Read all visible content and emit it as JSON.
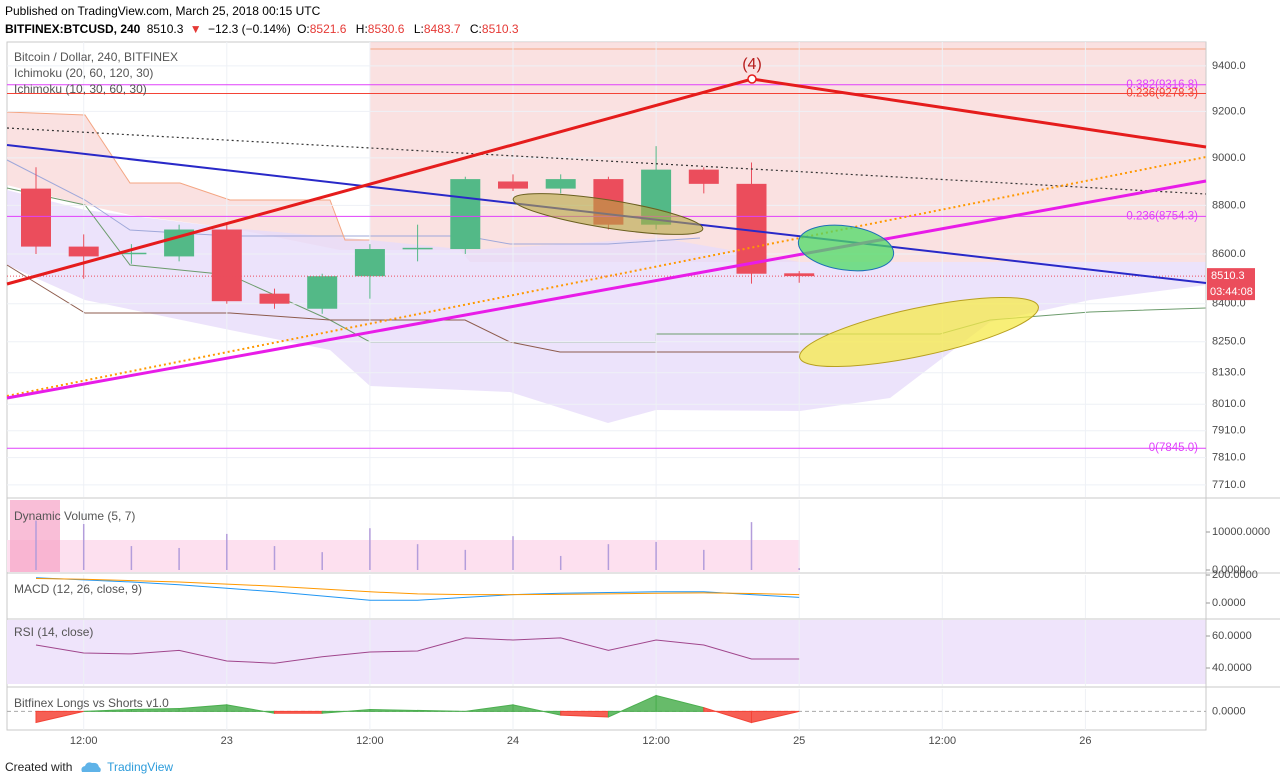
{
  "header": {
    "published": "Published on TradingView.com, March 25, 2018 00:15 UTC",
    "symbol": "BITFINEX:BTCUSD, 240",
    "arrow": "▼",
    "change": "−12.3 (−0.14%)",
    "ohlc_labels": [
      "O:",
      "H:",
      "L:",
      "C:"
    ]
  },
  "chart_data": [
    {
      "type": "candlestick",
      "title": "Bitcoin / Dollar, 240, BITFINEX",
      "indicators": [
        "Ichimoku (20, 60, 120, 30)",
        "Ichimoku (10, 30, 60, 30)"
      ],
      "categories": [
        null,
        "12:00",
        null,
        null,
        "23",
        null,
        null,
        "12:00",
        null,
        null,
        "24",
        null,
        null,
        "12:00",
        null,
        null,
        "25",
        null,
        null,
        "12:00",
        null,
        null,
        "26",
        null,
        null
      ],
      "open": [
        8870,
        8630,
        8600,
        8590,
        8700,
        8440,
        8380,
        8510,
        8620,
        8620,
        8900,
        8870,
        8910,
        8720,
        8950,
        8890,
        8521.6,
        null,
        null,
        null,
        null,
        null,
        null,
        null,
        null
      ],
      "high": [
        8960,
        8680,
        8640,
        8720,
        8720,
        8460,
        8520,
        8640,
        8720,
        8920,
        8930,
        8930,
        8920,
        9050,
        8960,
        8980,
        8530.6,
        null,
        null,
        null,
        null,
        null,
        null,
        null,
        null
      ],
      "low": [
        8600,
        8500,
        8560,
        8570,
        8400,
        8380,
        8360,
        8420,
        8570,
        8600,
        8860,
        8850,
        8700,
        8700,
        8850,
        8480,
        8483.7,
        null,
        null,
        null,
        null,
        null,
        null,
        null,
        null
      ],
      "close": [
        8630,
        8590,
        8605,
        8700,
        8410,
        8400,
        8510,
        8620,
        8625,
        8910,
        8870,
        8910,
        8720,
        8950,
        8890,
        8520,
        8510.3,
        null,
        null,
        null,
        null,
        null,
        null,
        null,
        null
      ],
      "up_color": "#53b987",
      "down_color": "#eb4d5c",
      "log": true,
      "ylim": [
        7666,
        9507
      ],
      "yticks": [
        {
          "value": 9400,
          "label": "9400.0"
        },
        {
          "value": 9200,
          "label": "9200.0"
        },
        {
          "value": 9000,
          "label": "9000.0"
        },
        {
          "value": 8800,
          "label": "8800.0"
        },
        {
          "value": 8600,
          "label": "8600.0"
        },
        {
          "value": 8400,
          "label": "8400.0"
        },
        {
          "value": 8250,
          "label": "8250.0"
        },
        {
          "value": 8130,
          "label": "8130.0"
        },
        {
          "value": 8010,
          "label": "8010.0"
        },
        {
          "value": 7910,
          "label": "7910.0"
        },
        {
          "value": 7810,
          "label": "7810.0"
        },
        {
          "value": 7710,
          "label": "7710.0"
        }
      ],
      "grid": true,
      "fib_levels": [
        {
          "value": 9316.8,
          "label": "0.382(9316.8)",
          "color": "#e040fb"
        },
        {
          "value": 9278.3,
          "label": "0.236(9278.3)",
          "color": "#f44336"
        },
        {
          "value": 8754.3,
          "label": "0.236(8754.3)",
          "color": "#e040fb"
        },
        {
          "value": 7845,
          "label": "0(7845.0)",
          "color": "#e040fb"
        }
      ],
      "wave_label": "(4)",
      "countdown": "03:44:08"
    },
    {
      "type": "bar",
      "title": "Dynamic Volume (5, 7)",
      "color": "#b39ddb",
      "values": [
        13000,
        12100,
        6300,
        5800,
        9500,
        6300,
        4700,
        11000,
        6800,
        5300,
        8900,
        3700,
        6800,
        7400,
        5300,
        12600,
        500,
        null,
        null,
        null,
        null,
        null,
        null,
        null,
        null
      ],
      "ylim": [
        -526,
        18421
      ],
      "yticks": [
        {
          "value": 10000,
          "label": "10000.0000"
        },
        {
          "value": 0,
          "label": "0.0000"
        }
      ]
    },
    {
      "type": "line",
      "title": "MACD (12, 26, close, 9)",
      "series": [
        {
          "color": "#2196f3",
          "values": [
            180,
            165,
            150,
            130,
            105,
            80,
            50,
            20,
            20,
            40,
            60,
            70,
            75,
            80,
            80,
            60,
            40,
            null,
            null,
            null,
            null,
            null,
            null,
            null,
            null
          ]
        },
        {
          "color": "#ff9800",
          "values": [
            175,
            170,
            160,
            150,
            135,
            120,
            100,
            80,
            65,
            60,
            60,
            62,
            65,
            70,
            72,
            68,
            60,
            null,
            null,
            null,
            null,
            null,
            null,
            null,
            null
          ]
        }
      ],
      "ylim": [
        -107,
        200
      ],
      "yticks": [
        {
          "value": 200,
          "label": "200.0000"
        },
        {
          "value": 0,
          "label": "0.0000"
        }
      ]
    },
    {
      "type": "line",
      "title": "RSI (14, close)",
      "series": [
        {
          "color": "#a0468c",
          "values": [
            54.4,
            49.4,
            48.8,
            51,
            44.4,
            43,
            47,
            50,
            50.6,
            58.8,
            57.5,
            58.8,
            51,
            57.5,
            54.4,
            45.6,
            45.6,
            null,
            null,
            null,
            null,
            null,
            null,
            null,
            null
          ]
        }
      ],
      "ylim": [
        28.75,
        70
      ],
      "yticks": [
        {
          "value": 60,
          "label": "60.0000"
        },
        {
          "value": 40,
          "label": "40.0000"
        }
      ]
    },
    {
      "type": "area",
      "title": "Bitfinex Longs vs Shorts v1.0",
      "up_color": "#4caf50",
      "down_color": "#f44336",
      "values": [
        -0.6,
        0,
        0.1,
        0.15,
        0.35,
        -0.1,
        -0.1,
        0.1,
        0.05,
        0,
        0.35,
        -0.2,
        -0.3,
        0.85,
        0.2,
        -0.6,
        0,
        null,
        null,
        null,
        null,
        null,
        null,
        null,
        null
      ],
      "ylim": [
        -1,
        1.2
      ],
      "yticks": [
        {
          "value": 0,
          "label": "0.0000"
        }
      ]
    }
  ],
  "footer": {
    "created_with": "Created with",
    "brand": "TradingView"
  }
}
